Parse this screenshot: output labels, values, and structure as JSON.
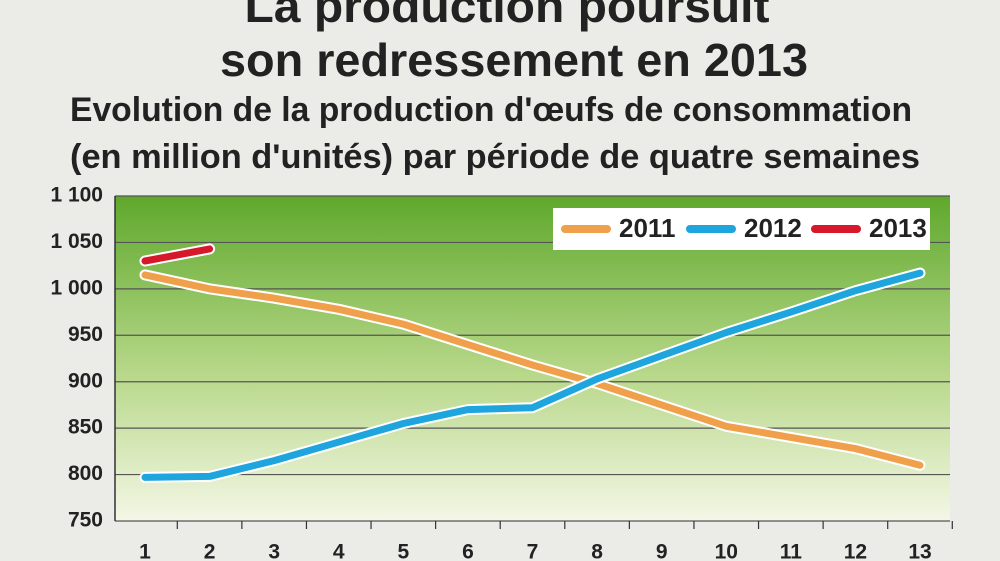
{
  "chart_data": {
    "type": "line",
    "title": [
      "La production poursuit",
      "son redressement en 2013"
    ],
    "subtitle": [
      "Evolution de la production d'œufs de consommation",
      "(en million d'unités) par période de quatre semaines"
    ],
    "categories": [
      "1",
      "2",
      "3",
      "4",
      "5",
      "6",
      "7",
      "8",
      "9",
      "10",
      "11",
      "12",
      "13"
    ],
    "series": [
      {
        "name": "2011",
        "color": "#f0a04b",
        "values": [
          1015,
          1000,
          990,
          978,
          962,
          940,
          918,
          898,
          875,
          852,
          840,
          828,
          810
        ]
      },
      {
        "name": "2012",
        "color": "#1ea5de",
        "values": [
          797,
          798,
          815,
          835,
          855,
          870,
          872,
          903,
          928,
          953,
          975,
          998,
          1017
        ]
      },
      {
        "name": "2013",
        "color": "#d7182a",
        "values": [
          1030,
          1043,
          null,
          null,
          null,
          null,
          null,
          null,
          null,
          null,
          null,
          null,
          null
        ]
      }
    ],
    "ylim": [
      750,
      1100
    ],
    "yticks": [
      750,
      800,
      850,
      900,
      950,
      {
        "value": 1000,
        "label": "1 000"
      },
      {
        "value": 1050,
        "label": "1 050"
      },
      {
        "value": 1100,
        "label": "1 100"
      }
    ],
    "grid": true,
    "legend": "top-right"
  }
}
